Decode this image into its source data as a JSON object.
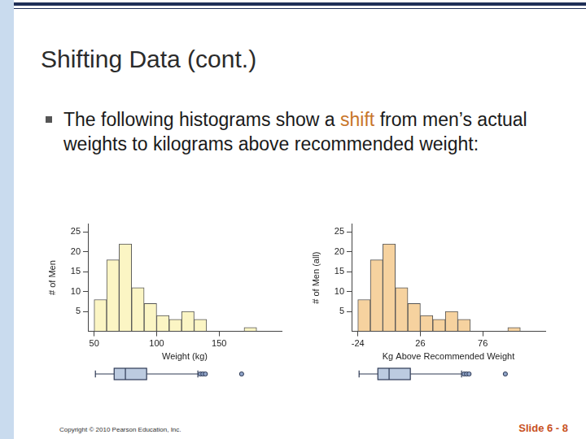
{
  "slide": {
    "title": "Shifting Data (cont.)",
    "bullet": {
      "before": "The following histograms show a ",
      "highlight": "shift",
      "after": " from men’s actual weights to kilograms above recommended weight:"
    },
    "copyright": "Copyright © 2010 Pearson Education, Inc.",
    "slide_number": "Slide 6 - 8"
  },
  "chart_data": [
    {
      "type": "histogram",
      "x_label": "Weight (kg)",
      "y_label": "# of Men",
      "bins": [
        50,
        60,
        70,
        80,
        90,
        100,
        110,
        120,
        130,
        140,
        150,
        160,
        170,
        180
      ],
      "values": [
        8,
        18,
        22,
        11,
        7,
        4,
        3,
        5,
        3,
        0,
        0,
        0,
        1
      ],
      "color": "#fbf5c4",
      "xlim": [
        45,
        200
      ],
      "xticks": [
        50,
        100,
        150
      ],
      "ylim": [
        0,
        27
      ],
      "yticks": [
        5,
        10,
        15,
        20,
        25
      ],
      "grid": false,
      "boxplot": {
        "min": 51,
        "q1": 66,
        "median": 75,
        "q3": 92,
        "max": 133,
        "outliers": [
          135,
          137,
          139,
          168
        ]
      }
    },
    {
      "type": "histogram",
      "x_label": "Kg Above Recommended Weight",
      "y_label": "# of Men (all)",
      "bins": [
        -24,
        -14,
        -4,
        6,
        16,
        26,
        36,
        46,
        56,
        66,
        76,
        86,
        96,
        106
      ],
      "values": [
        8,
        18,
        22,
        11,
        7,
        4,
        3,
        5,
        3,
        0,
        0,
        0,
        1
      ],
      "color": "#f6d29f",
      "xlim": [
        -29,
        126
      ],
      "xticks": [
        -24,
        26,
        76
      ],
      "ylim": [
        0,
        27
      ],
      "yticks": [
        5,
        10,
        15,
        20,
        25
      ],
      "grid": false,
      "boxplot": {
        "min": -23,
        "q1": -8,
        "median": 1,
        "q3": 18,
        "max": 59,
        "outliers": [
          61,
          63,
          65,
          94
        ]
      }
    }
  ]
}
